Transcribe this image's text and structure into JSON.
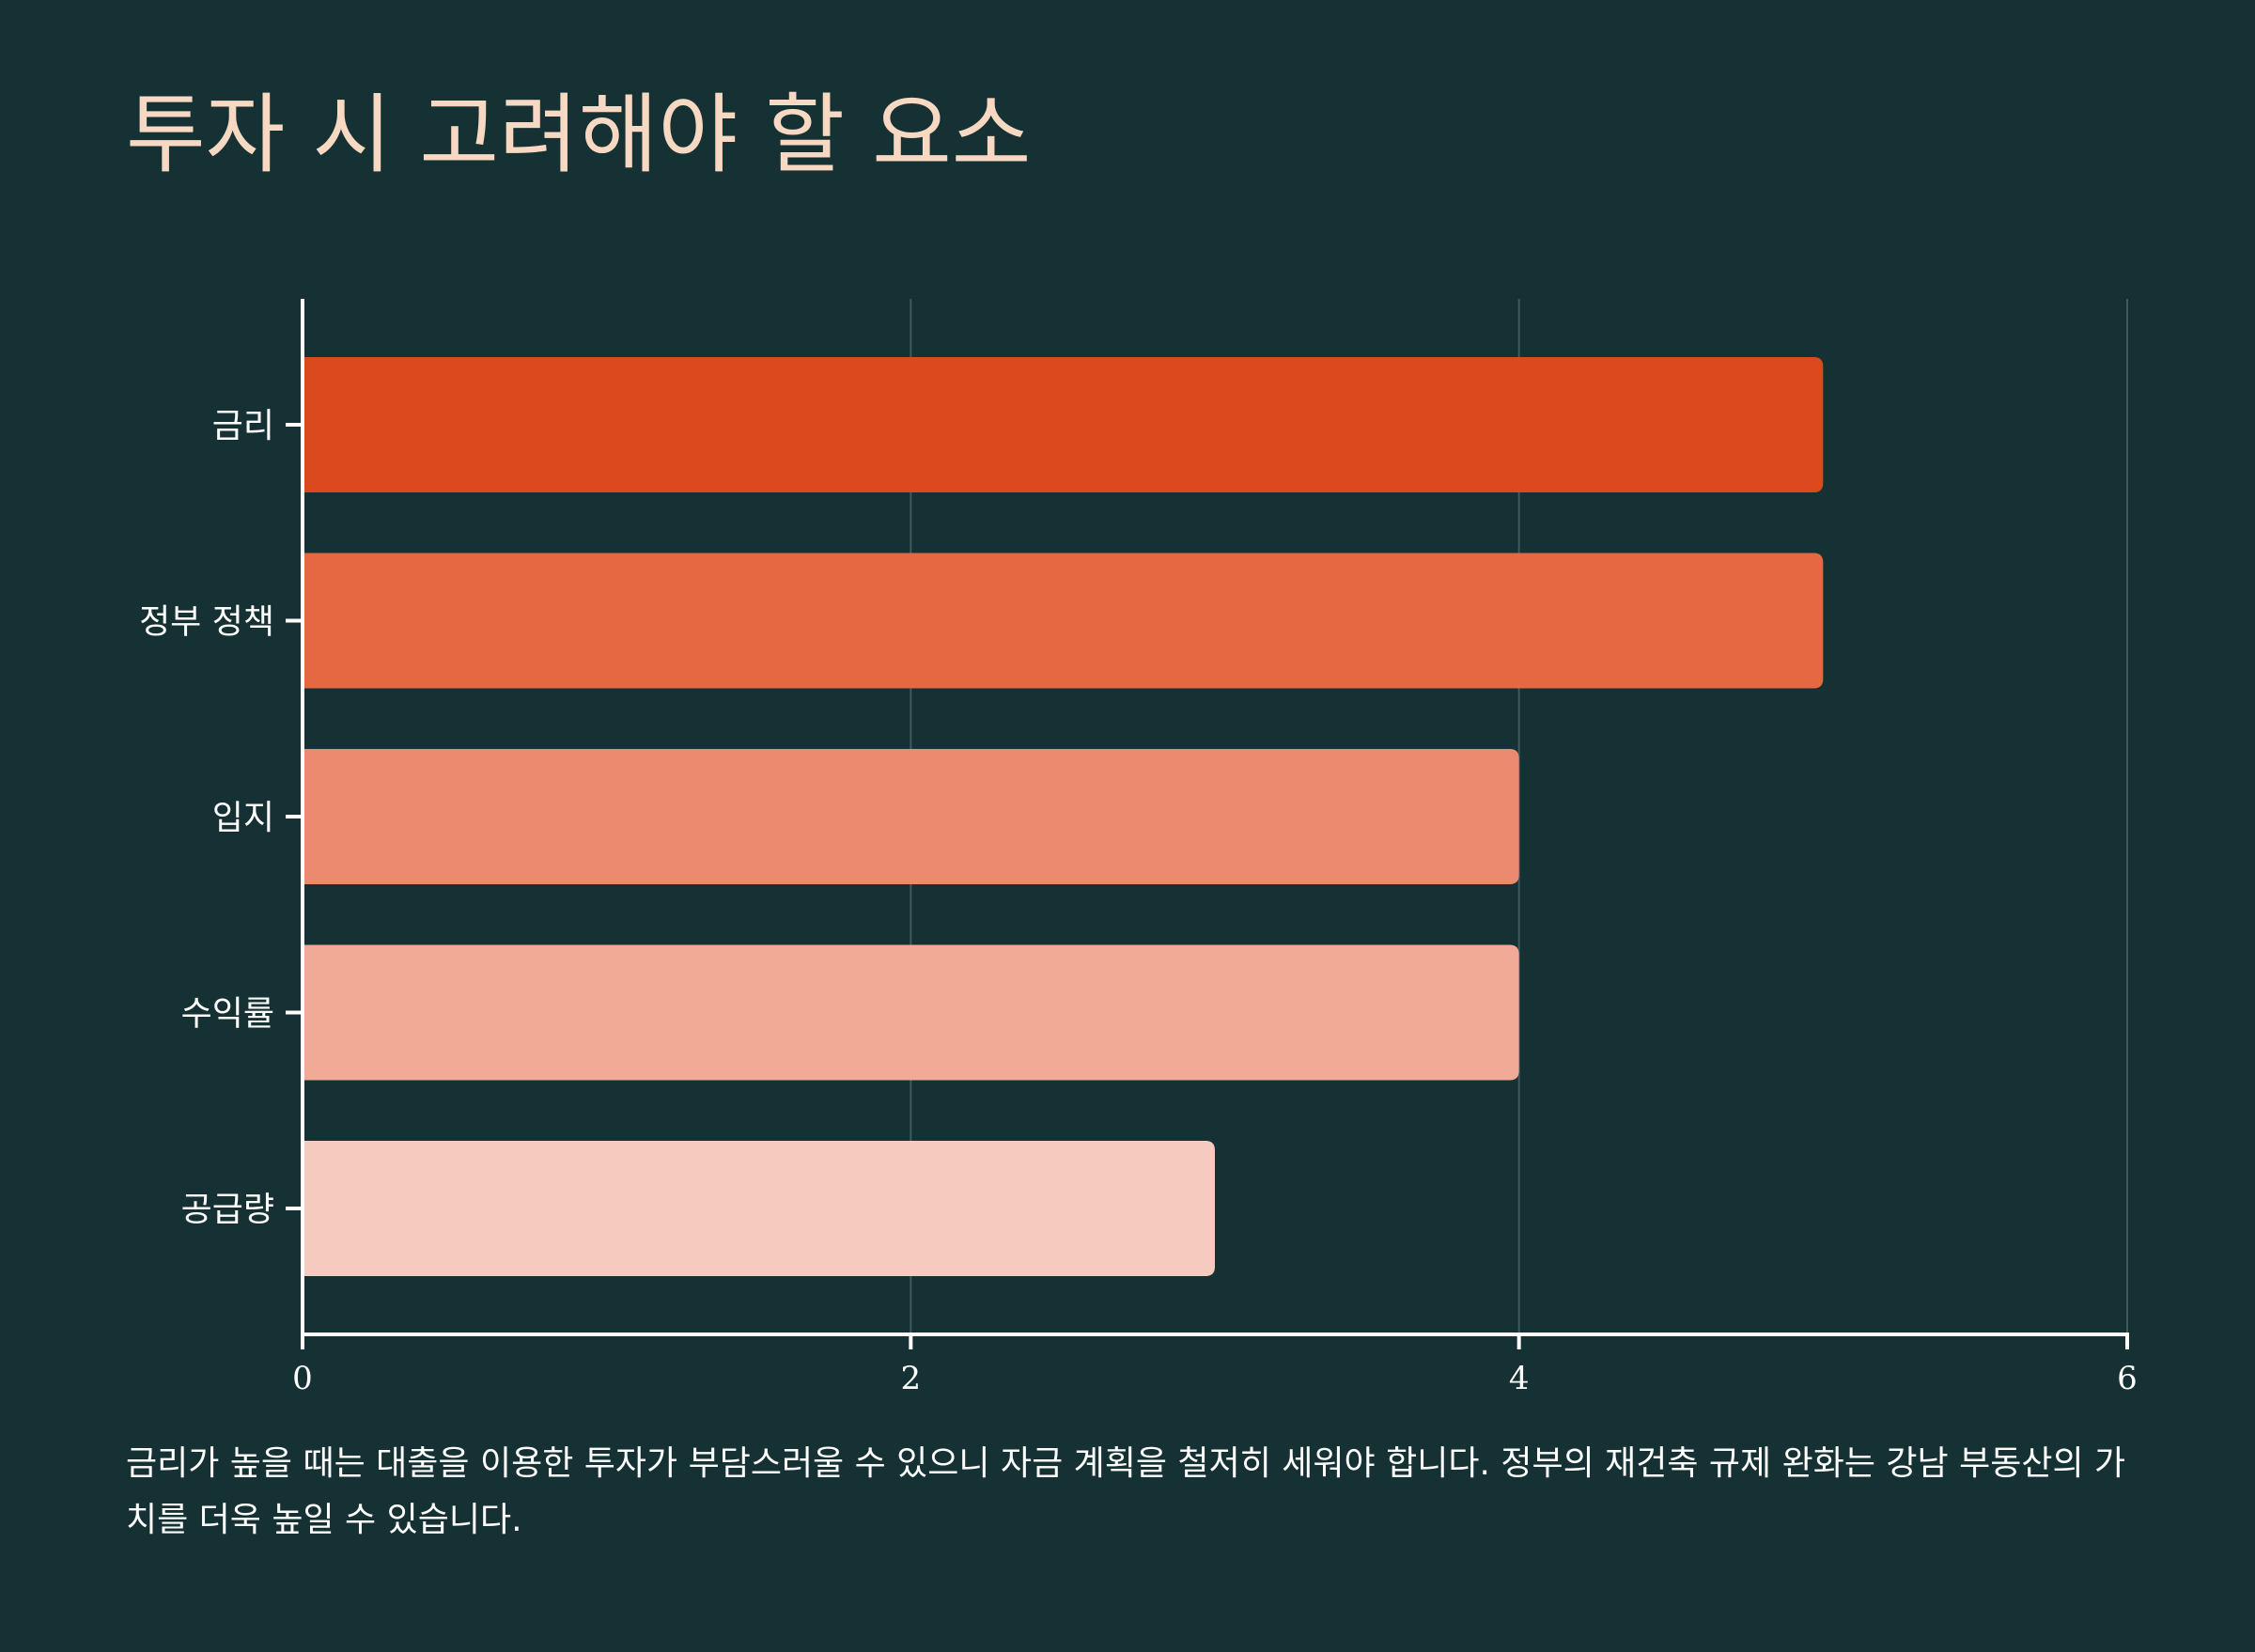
{
  "title": "투자 시 고려해야 할 요소",
  "chart_data": {
    "type": "bar",
    "orientation": "horizontal",
    "categories": [
      "금리",
      "정부 정책",
      "입지",
      "수익률",
      "공급량"
    ],
    "values": [
      5,
      5,
      4,
      4,
      3
    ],
    "colors": [
      "#db4a1e",
      "#e56842",
      "#ec8a6f",
      "#f0aa96",
      "#f6cbbf"
    ],
    "xlim": [
      0,
      6
    ],
    "xticks": [
      "0",
      "2",
      "4",
      "6"
    ],
    "xtick_values": [
      0,
      2,
      4,
      6
    ],
    "grid": "vertical",
    "xlabel": "",
    "ylabel": ""
  },
  "caption": "금리가 높을 때는 대출을 이용한 투자가 부담스러울 수 있으니 자금 계획을 철저히 세워야 합니다. 정부의 재건축 규제 완화는 강남 부동산의 가치를 더욱 높일 수 있습니다."
}
